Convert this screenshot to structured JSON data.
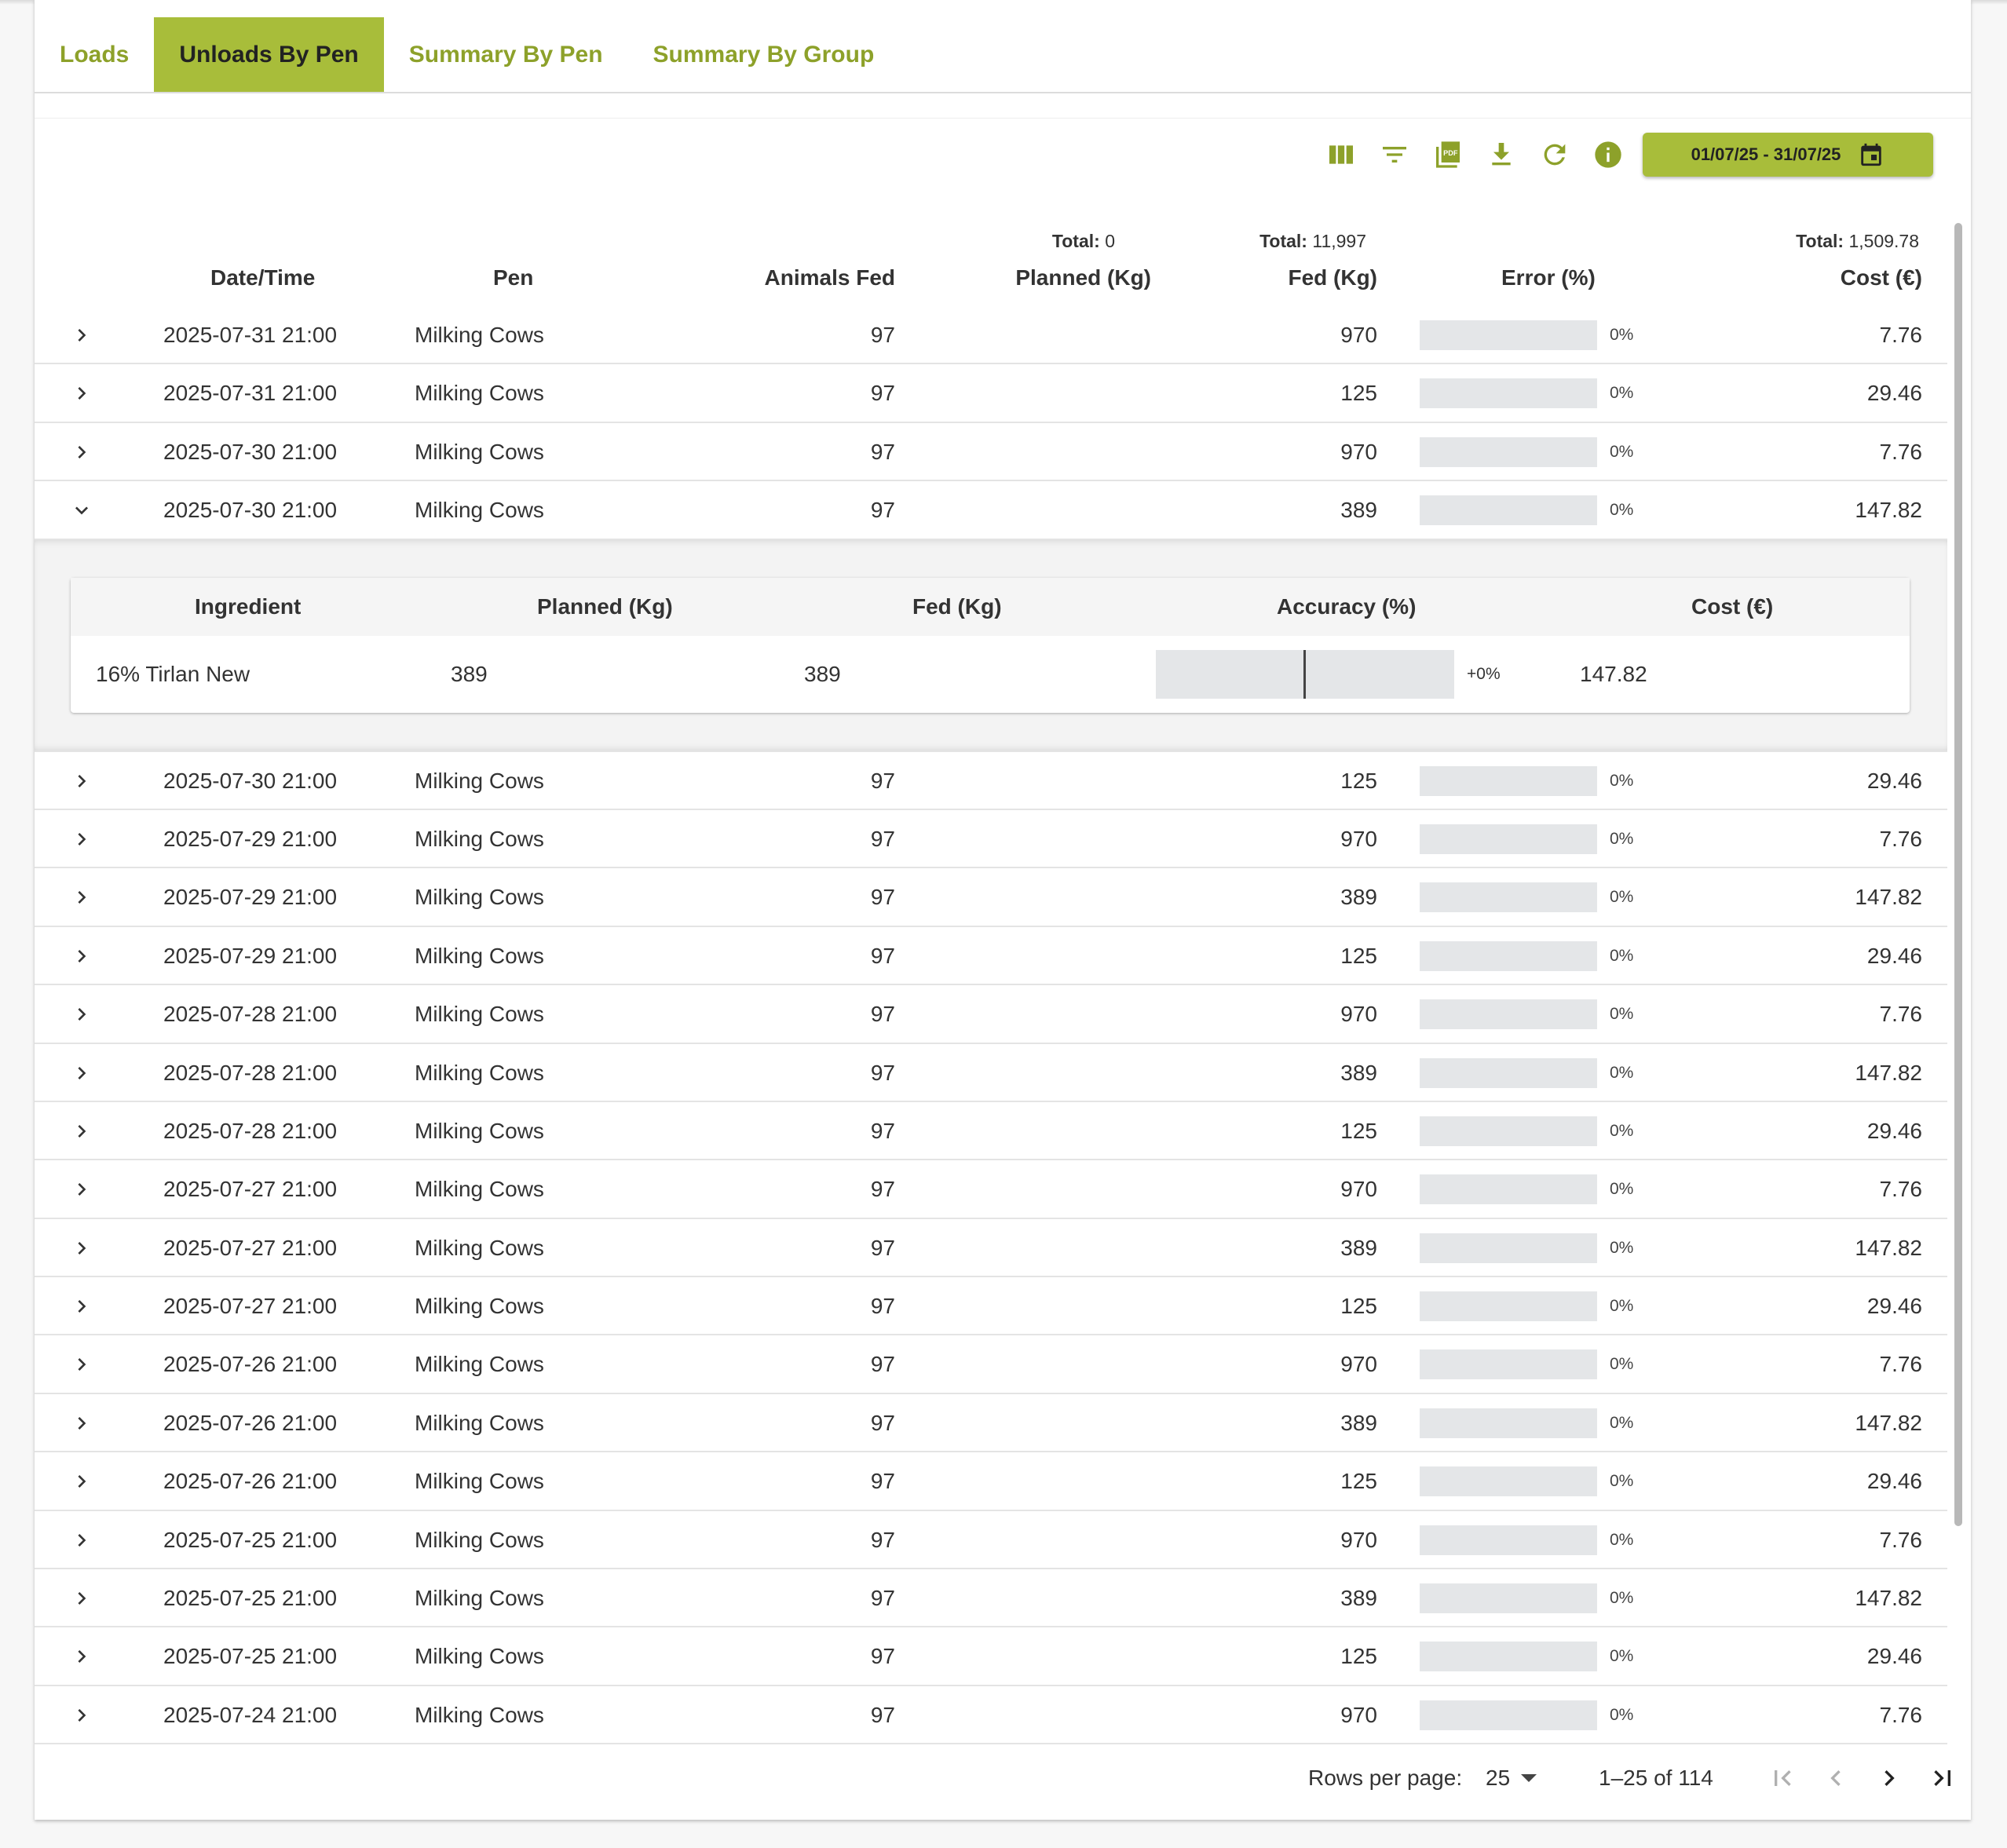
{
  "tabs": [
    {
      "label": "Loads",
      "active": false
    },
    {
      "label": "Unloads By Pen",
      "active": true
    },
    {
      "label": "Summary By Pen",
      "active": false
    },
    {
      "label": "Summary By Group",
      "active": false
    }
  ],
  "toolbar": {
    "icons": [
      "columns-icon",
      "filter-icon",
      "pdf-icon",
      "download-icon",
      "refresh-icon",
      "info-icon"
    ],
    "pdf_icon_text": "PDF",
    "date_range": "01/07/25 - 31/07/25"
  },
  "totals": {
    "label": "Total:",
    "planned": "0",
    "fed": "11,997",
    "cost": "1,509.78"
  },
  "columns": {
    "datetime": "Date/Time",
    "pen": "Pen",
    "animals": "Animals Fed",
    "planned": "Planned (Kg)",
    "fed": "Fed (Kg)",
    "error": "Error (%)",
    "cost": "Cost (€)"
  },
  "rows": [
    {
      "datetime": "2025-07-31 21:00",
      "pen": "Milking Cows",
      "animals": "97",
      "fed": "970",
      "error": "0%",
      "cost": "7.76"
    },
    {
      "datetime": "2025-07-31 21:00",
      "pen": "Milking Cows",
      "animals": "97",
      "fed": "125",
      "error": "0%",
      "cost": "29.46"
    },
    {
      "datetime": "2025-07-30 21:00",
      "pen": "Milking Cows",
      "animals": "97",
      "fed": "970",
      "error": "0%",
      "cost": "7.76"
    },
    {
      "datetime": "2025-07-30 21:00",
      "pen": "Milking Cows",
      "animals": "97",
      "fed": "389",
      "error": "0%",
      "cost": "147.82",
      "expanded": true
    },
    {
      "datetime": "2025-07-30 21:00",
      "pen": "Milking Cows",
      "animals": "97",
      "fed": "125",
      "error": "0%",
      "cost": "29.46"
    },
    {
      "datetime": "2025-07-29 21:00",
      "pen": "Milking Cows",
      "animals": "97",
      "fed": "970",
      "error": "0%",
      "cost": "7.76"
    },
    {
      "datetime": "2025-07-29 21:00",
      "pen": "Milking Cows",
      "animals": "97",
      "fed": "389",
      "error": "0%",
      "cost": "147.82"
    },
    {
      "datetime": "2025-07-29 21:00",
      "pen": "Milking Cows",
      "animals": "97",
      "fed": "125",
      "error": "0%",
      "cost": "29.46"
    },
    {
      "datetime": "2025-07-28 21:00",
      "pen": "Milking Cows",
      "animals": "97",
      "fed": "970",
      "error": "0%",
      "cost": "7.76"
    },
    {
      "datetime": "2025-07-28 21:00",
      "pen": "Milking Cows",
      "animals": "97",
      "fed": "389",
      "error": "0%",
      "cost": "147.82"
    },
    {
      "datetime": "2025-07-28 21:00",
      "pen": "Milking Cows",
      "animals": "97",
      "fed": "125",
      "error": "0%",
      "cost": "29.46"
    },
    {
      "datetime": "2025-07-27 21:00",
      "pen": "Milking Cows",
      "animals": "97",
      "fed": "970",
      "error": "0%",
      "cost": "7.76"
    },
    {
      "datetime": "2025-07-27 21:00",
      "pen": "Milking Cows",
      "animals": "97",
      "fed": "389",
      "error": "0%",
      "cost": "147.82"
    },
    {
      "datetime": "2025-07-27 21:00",
      "pen": "Milking Cows",
      "animals": "97",
      "fed": "125",
      "error": "0%",
      "cost": "29.46"
    },
    {
      "datetime": "2025-07-26 21:00",
      "pen": "Milking Cows",
      "animals": "97",
      "fed": "970",
      "error": "0%",
      "cost": "7.76"
    },
    {
      "datetime": "2025-07-26 21:00",
      "pen": "Milking Cows",
      "animals": "97",
      "fed": "389",
      "error": "0%",
      "cost": "147.82"
    },
    {
      "datetime": "2025-07-26 21:00",
      "pen": "Milking Cows",
      "animals": "97",
      "fed": "125",
      "error": "0%",
      "cost": "29.46"
    },
    {
      "datetime": "2025-07-25 21:00",
      "pen": "Milking Cows",
      "animals": "97",
      "fed": "970",
      "error": "0%",
      "cost": "7.76"
    },
    {
      "datetime": "2025-07-25 21:00",
      "pen": "Milking Cows",
      "animals": "97",
      "fed": "389",
      "error": "0%",
      "cost": "147.82"
    },
    {
      "datetime": "2025-07-25 21:00",
      "pen": "Milking Cows",
      "animals": "97",
      "fed": "125",
      "error": "0%",
      "cost": "29.46"
    },
    {
      "datetime": "2025-07-24 21:00",
      "pen": "Milking Cows",
      "animals": "97",
      "fed": "970",
      "error": "0%",
      "cost": "7.76"
    }
  ],
  "detail": {
    "columns": {
      "ingredient": "Ingredient",
      "planned": "Planned (Kg)",
      "fed": "Fed (Kg)",
      "accuracy": "Accuracy (%)",
      "cost": "Cost (€)"
    },
    "row": {
      "ingredient": "16% Tirlan New",
      "planned": "389",
      "fed": "389",
      "accuracy": "+0%",
      "cost": "147.82"
    }
  },
  "pagination": {
    "rows_per_page_label": "Rows per page:",
    "rows_per_page": "25",
    "range": "1–25 of 114"
  },
  "colors": {
    "accent": "#a8bd3a",
    "accent_dark": "#8da12a",
    "bar": "#e4e6e8"
  }
}
